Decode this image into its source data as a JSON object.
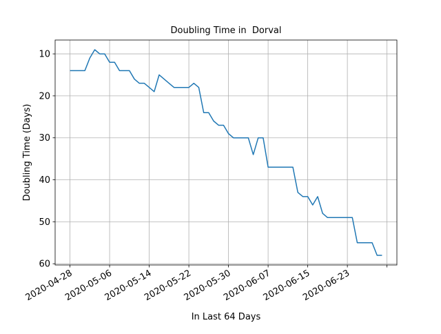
{
  "chart_data": {
    "type": "line",
    "title": "Doubling Time in  Dorval",
    "xlabel": "In Last 64 Days",
    "ylabel": "Doubling Time (Days)",
    "x": [
      "2020-04-28",
      "2020-04-29",
      "2020-04-30",
      "2020-05-01",
      "2020-05-02",
      "2020-05-03",
      "2020-05-04",
      "2020-05-05",
      "2020-05-06",
      "2020-05-07",
      "2020-05-08",
      "2020-05-09",
      "2020-05-10",
      "2020-05-11",
      "2020-05-12",
      "2020-05-13",
      "2020-05-14",
      "2020-05-15",
      "2020-05-16",
      "2020-05-17",
      "2020-05-18",
      "2020-05-19",
      "2020-05-20",
      "2020-05-21",
      "2020-05-22",
      "2020-05-23",
      "2020-05-24",
      "2020-05-25",
      "2020-05-26",
      "2020-05-27",
      "2020-05-28",
      "2020-05-29",
      "2020-05-30",
      "2020-05-31",
      "2020-06-01",
      "2020-06-02",
      "2020-06-03",
      "2020-06-04",
      "2020-06-05",
      "2020-06-06",
      "2020-06-07",
      "2020-06-08",
      "2020-06-09",
      "2020-06-10",
      "2020-06-11",
      "2020-06-12",
      "2020-06-13",
      "2020-06-14",
      "2020-06-15",
      "2020-06-16",
      "2020-06-17",
      "2020-06-18",
      "2020-06-19",
      "2020-06-20",
      "2020-06-21",
      "2020-06-22",
      "2020-06-23",
      "2020-06-24",
      "2020-06-25",
      "2020-06-26",
      "2020-06-27",
      "2020-06-28",
      "2020-06-29",
      "2020-06-30"
    ],
    "values": [
      14,
      14,
      14,
      14,
      11,
      9,
      10,
      10,
      12,
      12,
      14,
      14,
      14,
      16,
      17,
      17,
      18,
      19,
      15,
      16,
      17,
      18,
      18,
      18,
      18,
      17,
      18,
      24,
      24,
      26,
      27,
      27,
      29,
      30,
      30,
      30,
      30,
      34,
      30,
      30,
      37,
      37,
      37,
      37,
      37,
      37,
      43,
      44,
      44,
      46,
      44,
      48,
      49,
      49,
      49,
      49,
      49,
      49,
      55,
      55,
      55,
      55,
      58,
      58
    ],
    "color": "#1f77b4",
    "xlim": [
      "2020-04-25",
      "2020-07-03"
    ],
    "xticks": [
      "2020-04-28",
      "2020-05-06",
      "2020-05-14",
      "2020-05-22",
      "2020-05-30",
      "2020-06-07",
      "2020-06-15",
      "2020-06-23",
      {
        "value": "2020-07-01",
        "label": null
      }
    ],
    "ylim": [
      60.3,
      6.7
    ],
    "yticks": [
      10,
      20,
      30,
      40,
      50,
      60
    ],
    "grid": true
  }
}
